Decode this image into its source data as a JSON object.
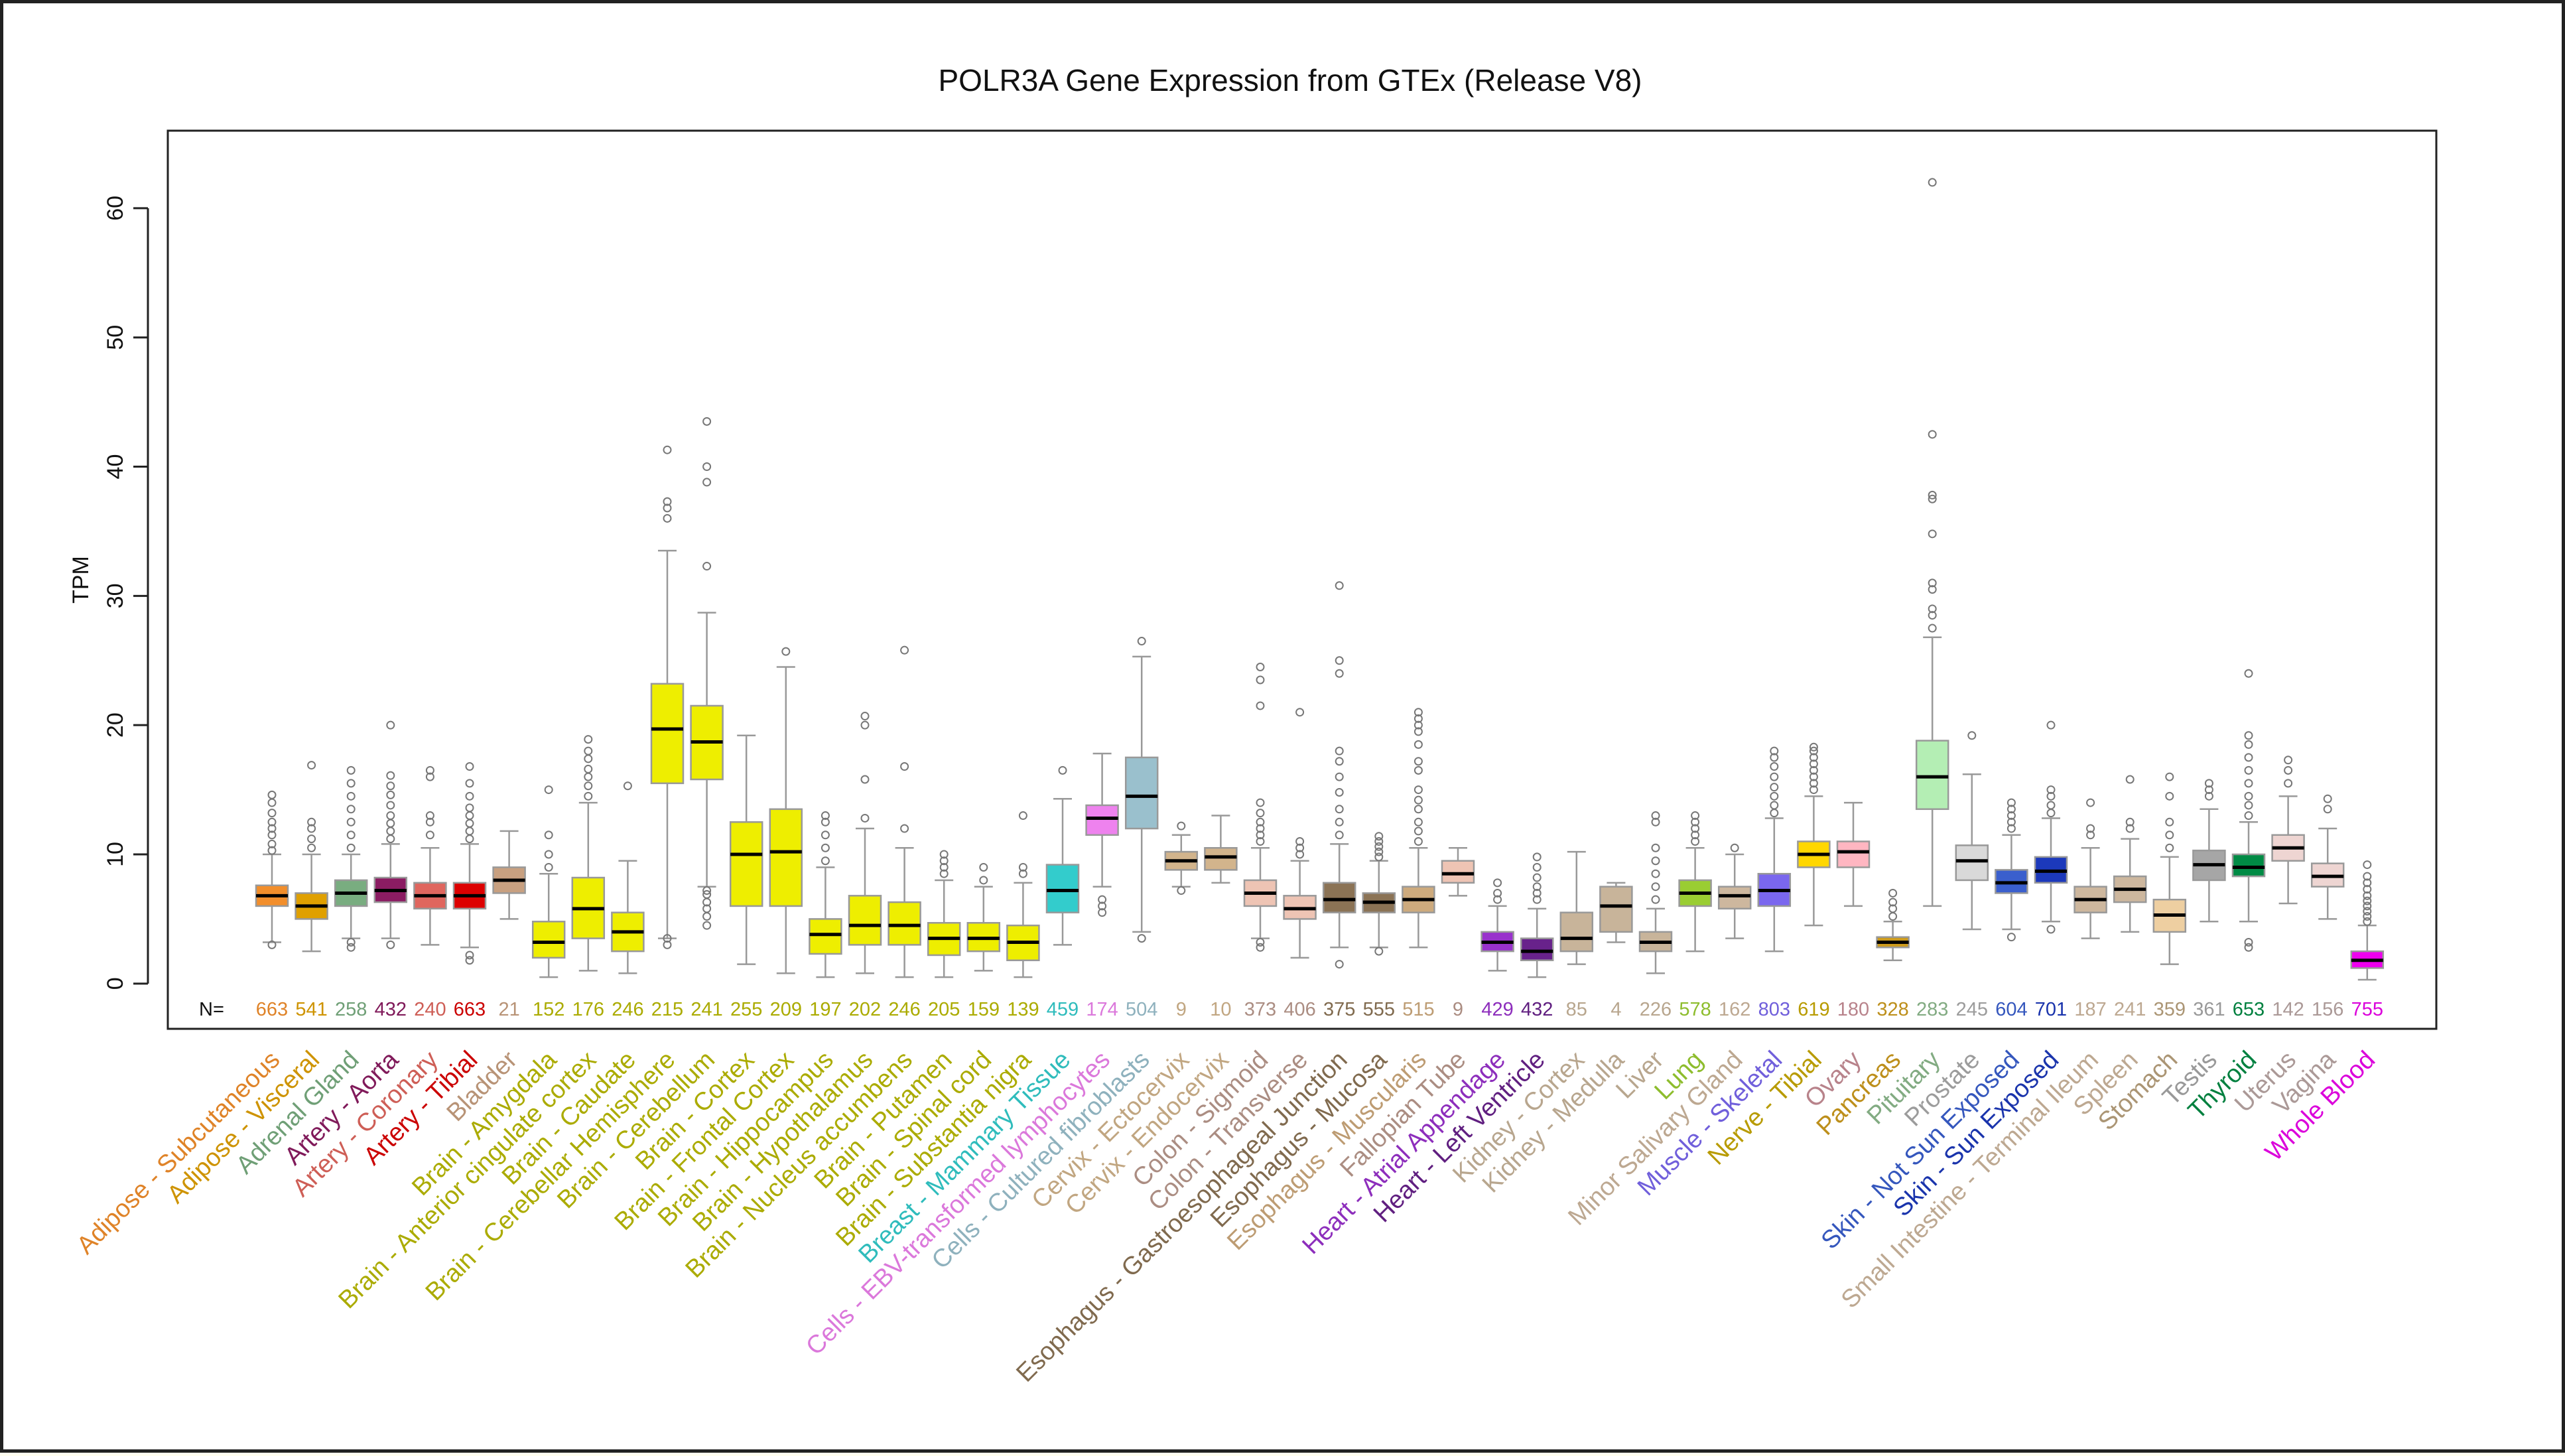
{
  "chart_data": {
    "type": "box",
    "title": "POLR3A Gene Expression from GTEx (Release V8)",
    "xlabel": "",
    "ylabel": "TPM",
    "ylim": [
      -3.5,
      66
    ],
    "yticks": [
      0,
      10,
      20,
      30,
      40,
      50,
      60
    ],
    "n_prefix": "N=",
    "grid": false,
    "legend": "none",
    "categories": [
      {
        "name": "Adipose - Subcutaneous",
        "n": "663",
        "color": "#f28e2b",
        "q1": 6.0,
        "median": 6.8,
        "q3": 7.6,
        "lo": 3.2,
        "hi": 10.0,
        "outliers": [
          3.0,
          10.3,
          10.8,
          11.5,
          12.0,
          12.5,
          13.2,
          14.0,
          14.6
        ]
      },
      {
        "name": "Adipose - Visceral",
        "n": "541",
        "color": "#e0a000",
        "q1": 5.0,
        "median": 6.0,
        "q3": 7.0,
        "lo": 2.5,
        "hi": 10.0,
        "outliers": [
          10.5,
          11.2,
          12.0,
          12.5,
          16.9
        ]
      },
      {
        "name": "Adrenal Gland",
        "n": "258",
        "color": "#79ad80",
        "q1": 6.0,
        "median": 7.0,
        "q3": 8.0,
        "lo": 3.5,
        "hi": 10.0,
        "outliers": [
          2.8,
          3.2,
          10.5,
          11.5,
          12.5,
          13.5,
          14.5,
          15.5,
          16.5
        ]
      },
      {
        "name": "Artery - Aorta",
        "n": "432",
        "color": "#8b1c62",
        "q1": 6.3,
        "median": 7.2,
        "q3": 8.2,
        "lo": 3.5,
        "hi": 10.8,
        "outliers": [
          3.0,
          11.2,
          11.8,
          12.4,
          13.0,
          13.8,
          14.6,
          15.3,
          16.1,
          20.0
        ]
      },
      {
        "name": "Artery - Coronary",
        "n": "240",
        "color": "#e0665e",
        "q1": 5.8,
        "median": 6.8,
        "q3": 7.8,
        "lo": 3.0,
        "hi": 10.5,
        "outliers": [
          11.5,
          12.5,
          13.0,
          16.0,
          16.5
        ]
      },
      {
        "name": "Artery - Tibial",
        "n": "663",
        "color": "#dd0000",
        "q1": 5.8,
        "median": 6.8,
        "q3": 7.8,
        "lo": 2.8,
        "hi": 10.8,
        "outliers": [
          1.8,
          2.2,
          11.2,
          11.8,
          12.4,
          13.0,
          13.6,
          14.5,
          15.5,
          16.8
        ]
      },
      {
        "name": "Bladder",
        "n": "21",
        "color": "#c8a080",
        "q1": 7.0,
        "median": 8.0,
        "q3": 9.0,
        "lo": 5.0,
        "hi": 11.8,
        "outliers": []
      },
      {
        "name": "Brain - Amygdala",
        "n": "152",
        "color": "#eeee00",
        "q1": 2.0,
        "median": 3.2,
        "q3": 4.8,
        "lo": 0.5,
        "hi": 8.5,
        "outliers": [
          9.0,
          10.0,
          11.5,
          15.0
        ]
      },
      {
        "name": "Brain - Anterior cingulate cortex",
        "n": "176",
        "color": "#eeee00",
        "q1": 3.5,
        "median": 5.8,
        "q3": 8.2,
        "lo": 1.0,
        "hi": 14.0,
        "outliers": [
          14.5,
          15.3,
          16.0,
          16.6,
          17.4,
          18.0,
          18.9
        ]
      },
      {
        "name": "Brain - Caudate",
        "n": "246",
        "color": "#eeee00",
        "q1": 2.5,
        "median": 4.0,
        "q3": 5.5,
        "lo": 0.8,
        "hi": 9.5,
        "outliers": [
          15.3
        ]
      },
      {
        "name": "Brain - Cerebellar Hemisphere",
        "n": "215",
        "color": "#eeee00",
        "q1": 15.5,
        "median": 19.7,
        "q3": 23.2,
        "lo": 3.5,
        "hi": 33.5,
        "outliers": [
          3.0,
          3.5,
          36.0,
          36.8,
          37.3,
          41.3
        ]
      },
      {
        "name": "Brain - Cerebellum",
        "n": "241",
        "color": "#eeee00",
        "q1": 15.8,
        "median": 18.7,
        "q3": 21.5,
        "lo": 7.5,
        "hi": 28.7,
        "outliers": [
          4.5,
          5.2,
          5.8,
          6.3,
          6.9,
          7.2,
          32.3,
          38.8,
          40.0,
          43.5
        ]
      },
      {
        "name": "Brain - Cortex",
        "n": "255",
        "color": "#eeee00",
        "q1": 6.0,
        "median": 10.0,
        "q3": 12.5,
        "lo": 1.5,
        "hi": 19.2,
        "outliers": []
      },
      {
        "name": "Brain - Frontal Cortex",
        "n": "209",
        "color": "#eeee00",
        "q1": 6.0,
        "median": 10.2,
        "q3": 13.5,
        "lo": 0.8,
        "hi": 24.5,
        "outliers": [
          25.7
        ]
      },
      {
        "name": "Brain - Hippocampus",
        "n": "197",
        "color": "#eeee00",
        "q1": 2.3,
        "median": 3.8,
        "q3": 5.0,
        "lo": 0.5,
        "hi": 9.0,
        "outliers": [
          9.5,
          10.5,
          11.5,
          12.5,
          13.0
        ]
      },
      {
        "name": "Brain - Hypothalamus",
        "n": "202",
        "color": "#eeee00",
        "q1": 3.0,
        "median": 4.5,
        "q3": 6.8,
        "lo": 0.8,
        "hi": 12.0,
        "outliers": [
          12.8,
          15.8,
          20.0,
          20.7
        ]
      },
      {
        "name": "Brain - Nucleus accumbens",
        "n": "246",
        "color": "#eeee00",
        "q1": 3.0,
        "median": 4.5,
        "q3": 6.3,
        "lo": 0.5,
        "hi": 10.5,
        "outliers": [
          12.0,
          16.8,
          25.8
        ]
      },
      {
        "name": "Brain - Putamen",
        "n": "205",
        "color": "#eeee00",
        "q1": 2.2,
        "median": 3.5,
        "q3": 4.7,
        "lo": 0.5,
        "hi": 8.0,
        "outliers": [
          8.5,
          9.0,
          9.5,
          10.0
        ]
      },
      {
        "name": "Brain - Spinal cord",
        "n": "159",
        "color": "#eeee00",
        "q1": 2.5,
        "median": 3.5,
        "q3": 4.7,
        "lo": 1.0,
        "hi": 7.5,
        "outliers": [
          8.0,
          9.0
        ]
      },
      {
        "name": "Brain - Substantia nigra",
        "n": "139",
        "color": "#eeee00",
        "q1": 1.8,
        "median": 3.2,
        "q3": 4.5,
        "lo": 0.5,
        "hi": 7.8,
        "outliers": [
          8.5,
          9.0,
          13.0
        ]
      },
      {
        "name": "Breast - Mammary Tissue",
        "n": "459",
        "color": "#33cccc",
        "q1": 5.5,
        "median": 7.2,
        "q3": 9.2,
        "lo": 3.0,
        "hi": 14.3,
        "outliers": [
          16.5
        ]
      },
      {
        "name": "Cells - EBV-transformed lymphocytes",
        "n": "174",
        "color": "#ee82ee",
        "q1": 11.5,
        "median": 12.8,
        "q3": 13.8,
        "lo": 7.5,
        "hi": 17.8,
        "outliers": [
          5.5,
          6.0,
          6.5
        ]
      },
      {
        "name": "Cells - Cultured fibroblasts",
        "n": "504",
        "color": "#9ac0cd",
        "q1": 12.0,
        "median": 14.5,
        "q3": 17.5,
        "lo": 4.0,
        "hi": 25.3,
        "outliers": [
          3.5,
          26.5
        ]
      },
      {
        "name": "Cervix - Ectocervix",
        "n": "9",
        "color": "#d2b48c",
        "q1": 8.8,
        "median": 9.5,
        "q3": 10.2,
        "lo": 7.5,
        "hi": 11.5,
        "outliers": [
          7.2,
          12.2
        ]
      },
      {
        "name": "Cervix - Endocervix",
        "n": "10",
        "color": "#d2b48c",
        "q1": 8.8,
        "median": 9.8,
        "q3": 10.5,
        "lo": 7.8,
        "hi": 13.0,
        "outliers": []
      },
      {
        "name": "Colon - Sigmoid",
        "n": "373",
        "color": "#eec4b4",
        "q1": 6.0,
        "median": 7.0,
        "q3": 8.0,
        "lo": 3.5,
        "hi": 10.5,
        "outliers": [
          2.8,
          3.2,
          11.0,
          11.5,
          12.0,
          12.5,
          13.2,
          14.0,
          21.5,
          23.5,
          24.5
        ]
      },
      {
        "name": "Colon - Transverse",
        "n": "406",
        "color": "#eec4b4",
        "q1": 5.0,
        "median": 5.8,
        "q3": 6.8,
        "lo": 2.0,
        "hi": 9.5,
        "outliers": [
          10.0,
          10.5,
          11.0,
          21.0
        ]
      },
      {
        "name": "Esophagus - Gastroesophageal Junction",
        "n": "375",
        "color": "#8b7355",
        "q1": 5.5,
        "median": 6.5,
        "q3": 7.8,
        "lo": 2.8,
        "hi": 10.8,
        "outliers": [
          1.5,
          11.5,
          12.5,
          13.5,
          14.8,
          16.0,
          17.2,
          18.0,
          24.0,
          25.0,
          30.8
        ]
      },
      {
        "name": "Esophagus - Mucosa",
        "n": "555",
        "color": "#8b7355",
        "q1": 5.5,
        "median": 6.3,
        "q3": 7.0,
        "lo": 2.8,
        "hi": 9.5,
        "outliers": [
          2.5,
          9.8,
          10.2,
          10.6,
          11.0,
          11.4
        ]
      },
      {
        "name": "Esophagus - Muscularis",
        "n": "515",
        "color": "#cdaa7d",
        "q1": 5.5,
        "median": 6.5,
        "q3": 7.5,
        "lo": 2.8,
        "hi": 10.5,
        "outliers": [
          11.0,
          11.8,
          12.5,
          13.5,
          14.2,
          15.0,
          16.5,
          17.2,
          18.5,
          19.5,
          20.0,
          20.5,
          21.0
        ]
      },
      {
        "name": "Fallopian Tube",
        "n": "9",
        "color": "#eec4b4",
        "q1": 7.8,
        "median": 8.5,
        "q3": 9.5,
        "lo": 6.8,
        "hi": 10.5,
        "outliers": []
      },
      {
        "name": "Heart - Atrial Appendage",
        "n": "429",
        "color": "#9932cc",
        "q1": 2.5,
        "median": 3.2,
        "q3": 4.0,
        "lo": 1.0,
        "hi": 6.0,
        "outliers": [
          6.5,
          7.0,
          7.8
        ]
      },
      {
        "name": "Heart - Left Ventricle",
        "n": "432",
        "color": "#68228b",
        "q1": 1.8,
        "median": 2.5,
        "q3": 3.5,
        "lo": 0.5,
        "hi": 5.8,
        "outliers": [
          6.5,
          7.0,
          7.5,
          8.2,
          9.0,
          9.8
        ]
      },
      {
        "name": "Kidney - Cortex",
        "n": "85",
        "color": "#c8b49a",
        "q1": 2.5,
        "median": 3.5,
        "q3": 5.5,
        "lo": 1.5,
        "hi": 10.2,
        "outliers": []
      },
      {
        "name": "Kidney - Medulla",
        "n": "4",
        "color": "#c8b49a",
        "q1": 4.0,
        "median": 6.0,
        "q3": 7.5,
        "lo": 3.2,
        "hi": 7.8,
        "outliers": []
      },
      {
        "name": "Liver",
        "n": "226",
        "color": "#c8b49a",
        "q1": 2.5,
        "median": 3.2,
        "q3": 4.0,
        "lo": 0.8,
        "hi": 5.8,
        "outliers": [
          6.5,
          7.5,
          8.5,
          9.5,
          10.5,
          12.5,
          13.0
        ]
      },
      {
        "name": "Lung",
        "n": "578",
        "color": "#9acd32",
        "q1": 6.0,
        "median": 7.0,
        "q3": 8.0,
        "lo": 2.5,
        "hi": 10.5,
        "outliers": [
          11.0,
          11.5,
          12.0,
          12.5,
          13.0
        ]
      },
      {
        "name": "Minor Salivary Gland",
        "n": "162",
        "color": "#cdb79e",
        "q1": 5.8,
        "median": 6.8,
        "q3": 7.5,
        "lo": 3.5,
        "hi": 10.0,
        "outliers": [
          10.5
        ]
      },
      {
        "name": "Muscle - Skeletal",
        "n": "803",
        "color": "#7a67ee",
        "q1": 6.0,
        "median": 7.2,
        "q3": 8.5,
        "lo": 2.5,
        "hi": 12.8,
        "outliers": [
          13.2,
          13.8,
          14.5,
          15.2,
          16.0,
          16.8,
          17.5,
          18.0
        ]
      },
      {
        "name": "Nerve - Tibial",
        "n": "619",
        "color": "#ffd700",
        "q1": 9.0,
        "median": 10.0,
        "q3": 11.0,
        "lo": 4.5,
        "hi": 14.5,
        "outliers": [
          15.0,
          15.5,
          16.0,
          16.5,
          17.0,
          17.5,
          18.0,
          18.3
        ]
      },
      {
        "name": "Ovary",
        "n": "180",
        "color": "#ffb6c1",
        "q1": 9.0,
        "median": 10.2,
        "q3": 11.0,
        "lo": 6.0,
        "hi": 14.0,
        "outliers": []
      },
      {
        "name": "Pancreas",
        "n": "328",
        "color": "#cd9b1d",
        "q1": 2.8,
        "median": 3.2,
        "q3": 3.6,
        "lo": 1.8,
        "hi": 4.8,
        "outliers": [
          5.2,
          5.8,
          6.3,
          7.0
        ]
      },
      {
        "name": "Pituitary",
        "n": "283",
        "color": "#b4eeb4",
        "q1": 13.5,
        "median": 16.0,
        "q3": 18.8,
        "lo": 6.0,
        "hi": 26.8,
        "outliers": [
          27.5,
          28.5,
          29.0,
          30.5,
          31.0,
          34.8,
          37.5,
          37.8,
          42.5,
          62.0
        ]
      },
      {
        "name": "Prostate",
        "n": "245",
        "color": "#d9d9d9",
        "q1": 8.0,
        "median": 9.5,
        "q3": 10.7,
        "lo": 4.2,
        "hi": 16.2,
        "outliers": [
          19.2
        ]
      },
      {
        "name": "Skin - Not Sun Exposed",
        "n": "604",
        "color": "#3a5fcd",
        "q1": 7.0,
        "median": 7.8,
        "q3": 8.8,
        "lo": 4.2,
        "hi": 11.5,
        "outliers": [
          3.6,
          12.0,
          12.5,
          13.0,
          13.5,
          14.0
        ]
      },
      {
        "name": "Skin - Sun Exposed",
        "n": "701",
        "color": "#1c39bb",
        "q1": 7.8,
        "median": 8.7,
        "q3": 9.8,
        "lo": 4.8,
        "hi": 12.8,
        "outliers": [
          4.2,
          13.2,
          13.8,
          14.5,
          15.0,
          20.0
        ]
      },
      {
        "name": "Small Intestine - Terminal Ileum",
        "n": "187",
        "color": "#cdb79e",
        "q1": 5.5,
        "median": 6.5,
        "q3": 7.5,
        "lo": 3.5,
        "hi": 10.5,
        "outliers": [
          11.5,
          12.0,
          14.0
        ]
      },
      {
        "name": "Spleen",
        "n": "241",
        "color": "#cdb79e",
        "q1": 6.3,
        "median": 7.3,
        "q3": 8.3,
        "lo": 4.0,
        "hi": 11.2,
        "outliers": [
          12.0,
          12.5,
          15.8
        ]
      },
      {
        "name": "Stomach",
        "n": "359",
        "color": "#eecfa1",
        "q1": 4.0,
        "median": 5.3,
        "q3": 6.5,
        "lo": 1.5,
        "hi": 9.8,
        "outliers": [
          10.5,
          11.5,
          12.5,
          14.5,
          16.0
        ]
      },
      {
        "name": "Testis",
        "n": "361",
        "color": "#a6a6a6",
        "q1": 8.0,
        "median": 9.2,
        "q3": 10.3,
        "lo": 4.8,
        "hi": 13.5,
        "outliers": [
          14.5,
          15.0,
          15.5
        ]
      },
      {
        "name": "Thyroid",
        "n": "653",
        "color": "#008b45",
        "q1": 8.3,
        "median": 9.0,
        "q3": 10.0,
        "lo": 4.8,
        "hi": 12.5,
        "outliers": [
          2.8,
          3.2,
          13.0,
          13.8,
          14.5,
          15.5,
          16.5,
          17.5,
          18.5,
          19.2,
          24.0
        ]
      },
      {
        "name": "Uterus",
        "n": "142",
        "color": "#eed5d2",
        "q1": 9.5,
        "median": 10.5,
        "q3": 11.5,
        "lo": 6.2,
        "hi": 14.5,
        "outliers": [
          15.5,
          16.5,
          17.3
        ]
      },
      {
        "name": "Vagina",
        "n": "156",
        "color": "#eed5d2",
        "q1": 7.5,
        "median": 8.3,
        "q3": 9.3,
        "lo": 5.0,
        "hi": 12.0,
        "outliers": [
          13.5,
          14.3
        ]
      },
      {
        "name": "Whole Blood",
        "n": "755",
        "color": "#ee00ee",
        "q1": 1.2,
        "median": 1.8,
        "q3": 2.5,
        "lo": 0.3,
        "hi": 4.5,
        "outliers": [
          4.8,
          5.2,
          5.6,
          6.0,
          6.4,
          6.8,
          7.3,
          7.8,
          8.3,
          9.2
        ]
      }
    ]
  }
}
